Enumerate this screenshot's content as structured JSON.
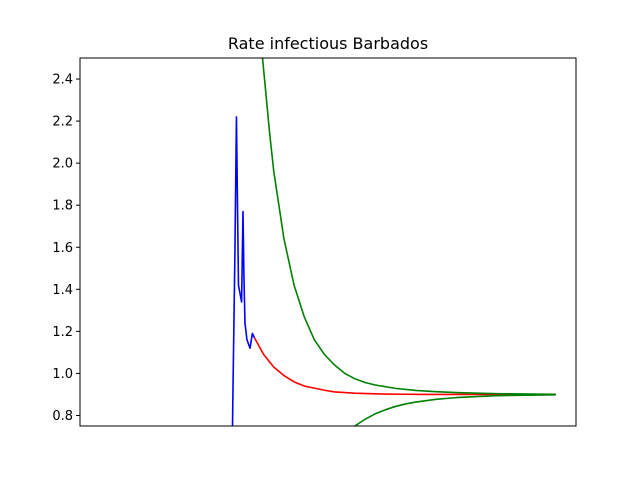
{
  "chart_data": {
    "type": "line",
    "title": "Rate infectious Barbados",
    "xlabel": "",
    "ylabel": "",
    "xlim": [
      0,
      1
    ],
    "ylim": [
      0.75,
      2.5
    ],
    "x_ticks_shown": false,
    "yticks": [
      0.8,
      1.0,
      1.2,
      1.4,
      1.6,
      1.8,
      2.0,
      2.2,
      2.4
    ],
    "ytick_labels": [
      "0.8",
      "1.0",
      "1.2",
      "1.4",
      "1.6",
      "1.8",
      "2.0",
      "2.2",
      "2.4"
    ],
    "grid": false,
    "legend": "none",
    "series": [
      {
        "color": "#0000ff",
        "x": [
          0.3075,
          0.3081,
          0.3122,
          0.3154,
          0.3195,
          0.3258,
          0.3286,
          0.3306,
          0.3326,
          0.3366,
          0.3428,
          0.3475,
          0.3516
        ],
        "y": [
          0.75,
          0.87,
          1.55,
          2.22,
          1.42,
          1.34,
          1.77,
          1.45,
          1.24,
          1.16,
          1.12,
          1.19,
          1.17
        ]
      },
      {
        "color": "#ff0000",
        "x": [
          0.3516,
          0.3703,
          0.3907,
          0.4112,
          0.4316,
          0.452,
          0.4725,
          0.4929,
          0.5133,
          0.5542,
          0.5951,
          0.6155,
          0.6564,
          0.6973,
          0.7382,
          0.7791,
          0.82,
          0.8608,
          0.9591
        ],
        "y": [
          1.17,
          1.09,
          1.03,
          0.99,
          0.96,
          0.94,
          0.93,
          0.92,
          0.912,
          0.906,
          0.903,
          0.902,
          0.901,
          0.9,
          0.9,
          0.9,
          0.9,
          0.9,
          0.9
        ]
      },
      {
        "color": "#008000",
        "x": [
          0.368,
          0.382,
          0.3907,
          0.4112,
          0.4316,
          0.452,
          0.4725,
          0.4929,
          0.5133,
          0.5338,
          0.5542,
          0.5747,
          0.5951,
          0.636,
          0.6769,
          0.7177,
          0.7586,
          0.7995,
          0.8404,
          0.9591
        ],
        "y": [
          2.5,
          2.15,
          1.96,
          1.64,
          1.42,
          1.27,
          1.16,
          1.09,
          1.04,
          1.0,
          0.975,
          0.957,
          0.945,
          0.929,
          0.919,
          0.913,
          0.909,
          0.906,
          0.904,
          0.901
        ]
      },
      {
        "color": "#008000",
        "x": [
          0.5542,
          0.5747,
          0.5951,
          0.6155,
          0.636,
          0.6564,
          0.6769,
          0.7177,
          0.7586,
          0.7995,
          0.8404,
          0.8813,
          0.9222,
          0.9591
        ],
        "y": [
          0.75,
          0.782,
          0.808,
          0.827,
          0.843,
          0.855,
          0.864,
          0.877,
          0.885,
          0.89,
          0.894,
          0.896,
          0.897,
          0.898
        ]
      }
    ]
  }
}
